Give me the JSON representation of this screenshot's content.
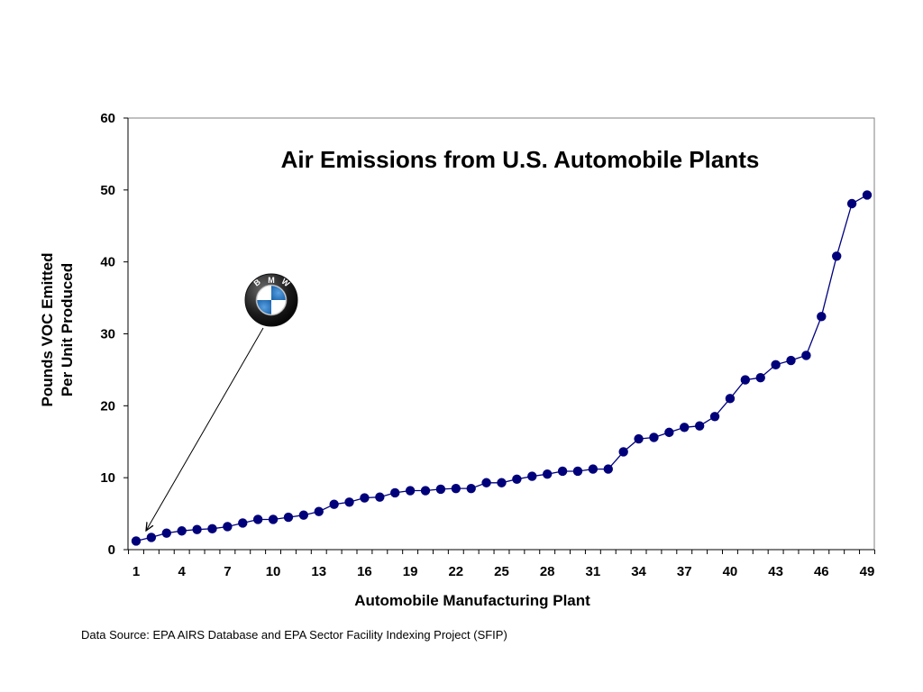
{
  "chart_data": {
    "type": "line",
    "title": "Air Emissions from U.S. Automobile Plants",
    "xlabel": "Automobile Manufacturing Plant",
    "ylabel_lines": [
      "Pounds VOC Emitted",
      "Per Unit Produced"
    ],
    "ylim": [
      0,
      60
    ],
    "yticks": [
      0,
      10,
      20,
      30,
      40,
      50,
      60
    ],
    "xlim": [
      1,
      49
    ],
    "xticks": [
      1,
      4,
      7,
      10,
      13,
      16,
      19,
      22,
      25,
      28,
      31,
      34,
      37,
      40,
      43,
      46,
      49
    ],
    "grid": false,
    "x": [
      1,
      2,
      3,
      4,
      5,
      6,
      7,
      8,
      9,
      10,
      11,
      12,
      13,
      14,
      15,
      16,
      17,
      18,
      19,
      20,
      21,
      22,
      23,
      24,
      25,
      26,
      27,
      28,
      29,
      30,
      31,
      32,
      33,
      34,
      35,
      36,
      37,
      38,
      39,
      40,
      41,
      42,
      43,
      44,
      45,
      46,
      47,
      48,
      49
    ],
    "y": [
      1.2,
      1.7,
      2.3,
      2.6,
      2.8,
      2.9,
      3.2,
      3.7,
      4.2,
      4.2,
      4.5,
      4.8,
      5.3,
      6.3,
      6.6,
      7.2,
      7.3,
      7.9,
      8.2,
      8.2,
      8.4,
      8.5,
      8.5,
      9.3,
      9.3,
      9.8,
      10.2,
      10.5,
      10.9,
      10.9,
      11.2,
      11.2,
      13.6,
      15.4,
      15.6,
      16.3,
      17.0,
      17.2,
      18.5,
      21.0,
      23.6,
      23.9,
      25.7,
      26.3,
      27.0,
      32.4,
      40.8,
      48.1,
      49.3
    ],
    "annotation": {
      "label": "BMW logo",
      "points_to_x": 1
    },
    "colors": {
      "series": "#000080",
      "marker": "#00007a",
      "axis": "#000000",
      "plot_border": "#808080"
    }
  },
  "footer": {
    "source": "Data Source:  EPA AIRS Database and EPA Sector Facility Indexing Project (SFIP)"
  },
  "logo": {
    "letters": [
      "B",
      "M",
      "W"
    ]
  }
}
